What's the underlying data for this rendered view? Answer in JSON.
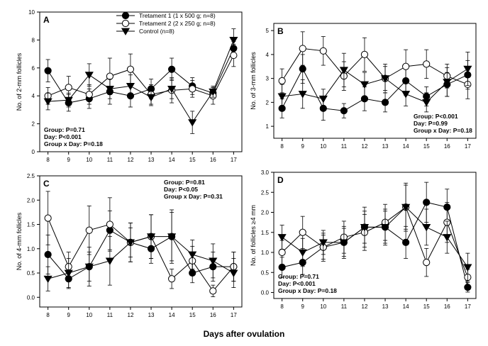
{
  "figure": {
    "shared_xlabel": "Days after ovulation"
  },
  "legend": [
    {
      "name": "Tretament 1 (1 x 500 g; n=8)",
      "marker": "filled-circle"
    },
    {
      "name": "Tretament 2 (2 x 250 g; n=8)",
      "marker": "open-circle"
    },
    {
      "name": "Control (n=8)",
      "marker": "filled-triangle-down"
    }
  ],
  "chart_data": [
    {
      "type": "line",
      "panel_label": "A",
      "ylabel": "No. of 2-mm follicles",
      "x": [
        8,
        9,
        10,
        11,
        12,
        13,
        14,
        15,
        16,
        17
      ],
      "xlim": [
        7.6,
        17.4
      ],
      "ylim": [
        0,
        10
      ],
      "yticks": [
        0,
        2,
        4,
        6,
        8,
        10
      ],
      "ytick_labels": [
        "0",
        "2",
        "4",
        "6",
        "8",
        "10"
      ],
      "series": [
        {
          "name": "Tretament 1 (1 x 500 g; n=8)",
          "marker": "filled-circle",
          "values": [
            5.8,
            3.5,
            3.8,
            4.3,
            4.0,
            4.5,
            5.9,
            4.7,
            4.2,
            7.4
          ],
          "errors": [
            0.8,
            0.6,
            0.7,
            0.9,
            0.8,
            0.7,
            0.8,
            0.6,
            0.4,
            0.5
          ]
        },
        {
          "name": "Tretament 2 (2 x 250 g; n=8)",
          "marker": "open-circle",
          "values": [
            4.0,
            4.6,
            4.1,
            5.4,
            5.9,
            4.1,
            4.4,
            4.5,
            4.0,
            6.9
          ],
          "errors": [
            0.6,
            0.8,
            0.7,
            1.3,
            1.1,
            0.7,
            0.9,
            0.6,
            0.6,
            0.8
          ]
        },
        {
          "name": "Control (n=8)",
          "marker": "filled-triangle-down",
          "values": [
            3.6,
            3.7,
            5.5,
            4.5,
            4.7,
            3.9,
            4.5,
            2.1,
            4.3,
            8.0
          ],
          "errors": [
            0.6,
            0.5,
            0.8,
            0.7,
            0.8,
            0.6,
            0.7,
            0.8,
            0.4,
            0.8
          ]
        }
      ],
      "stats": [
        "Group: P=0.71",
        "Day: P<0.001",
        "Group x Day: P=0.18"
      ],
      "stats_position": "bottom-left"
    },
    {
      "type": "line",
      "panel_label": "B",
      "ylabel": "No. of 3-mm follicles",
      "x": [
        8,
        9,
        10,
        11,
        12,
        13,
        14,
        15,
        16,
        17
      ],
      "xlim": [
        7.6,
        17.4
      ],
      "ylim": [
        0.5,
        5.3
      ],
      "yticks": [
        1,
        2,
        3,
        4,
        5
      ],
      "ytick_labels": [
        "1",
        "2",
        "3",
        "4",
        "5"
      ],
      "series": [
        {
          "name": "Tretament 1 (1 x 500 g; n=8)",
          "marker": "filled-circle",
          "values": [
            1.75,
            3.4,
            1.75,
            1.65,
            2.15,
            2.0,
            2.9,
            2.25,
            2.75,
            3.15
          ],
          "errors": [
            0.4,
            0.6,
            0.5,
            0.3,
            0.5,
            0.4,
            0.6,
            0.4,
            0.5,
            0.6
          ]
        },
        {
          "name": "Tretament 2 (2 x 250 g; n=8)",
          "marker": "open-circle",
          "values": [
            2.9,
            4.25,
            4.15,
            3.1,
            4.0,
            3.0,
            3.5,
            3.6,
            3.1,
            2.75
          ],
          "errors": [
            0.5,
            0.7,
            0.6,
            0.6,
            0.7,
            0.5,
            0.7,
            0.6,
            0.5,
            0.6
          ]
        },
        {
          "name": "Control (n=8)",
          "marker": "filled-triangle-down",
          "values": [
            2.25,
            2.35,
            2.15,
            3.35,
            2.75,
            3.0,
            2.35,
            2.0,
            2.85,
            3.4
          ],
          "errors": [
            0.5,
            0.6,
            0.4,
            0.7,
            0.5,
            0.6,
            0.5,
            0.4,
            0.6,
            0.7
          ]
        }
      ],
      "stats": [
        "Group: P<0.001",
        "Day: P=0.99",
        "Group x Day: P=0.18"
      ],
      "stats_position": "bottom-right"
    },
    {
      "type": "line",
      "panel_label": "C",
      "ylabel": "No. of 4-mm follicles",
      "x": [
        8,
        9,
        10,
        11,
        12,
        13,
        14,
        15,
        16,
        17
      ],
      "xlim": [
        7.6,
        17.4
      ],
      "ylim": [
        -0.2,
        2.5
      ],
      "yticks": [
        0,
        0.5,
        1.0,
        1.5,
        2.0,
        2.5
      ],
      "ytick_labels": [
        "0.0",
        "0.5",
        "1.0",
        "1.5",
        "2.0",
        "2.5"
      ],
      "series": [
        {
          "name": "Tretament 1 (1 x 500 g; n=8)",
          "marker": "filled-circle",
          "values": [
            0.88,
            0.38,
            0.63,
            1.38,
            1.13,
            1.0,
            1.25,
            0.5,
            0.63,
            0.63
          ],
          "errors": [
            0.4,
            0.2,
            0.3,
            0.4,
            0.3,
            0.3,
            0.5,
            0.2,
            0.3,
            0.3
          ]
        },
        {
          "name": "Tretament 2 (2 x 250 g; n=8)",
          "marker": "open-circle",
          "values": [
            1.63,
            0.63,
            1.38,
            1.5,
            1.13,
            1.25,
            0.38,
            0.75,
            0.13,
            0.63
          ],
          "errors": [
            0.55,
            0.3,
            0.5,
            0.55,
            0.4,
            0.45,
            0.2,
            0.3,
            0.12,
            0.3
          ]
        },
        {
          "name": "Control (n=8)",
          "marker": "filled-triangle-down",
          "values": [
            0.38,
            0.5,
            0.63,
            0.75,
            1.13,
            1.25,
            1.25,
            0.88,
            0.75,
            0.5
          ],
          "errors": [
            0.25,
            0.3,
            0.4,
            0.5,
            0.4,
            0.45,
            0.55,
            0.3,
            0.35,
            0.3
          ]
        }
      ],
      "stats": [
        "Group: P=0.81",
        "Day: P<0.05",
        "Group x Day: P=0.31"
      ],
      "stats_position": "top-right"
    },
    {
      "type": "line",
      "panel_label": "D",
      "ylabel": "No. of follicles ≥4 mm",
      "x": [
        8,
        9,
        10,
        11,
        12,
        13,
        14,
        15,
        16,
        17
      ],
      "xlim": [
        7.6,
        17.4
      ],
      "ylim": [
        -0.15,
        3.0
      ],
      "yticks": [
        0,
        0.5,
        1.0,
        1.5,
        2.0,
        2.5,
        3.0
      ],
      "ytick_labels": [
        "0.0",
        "0.5",
        "1.0",
        "1.5",
        "2.0",
        "2.5",
        "3.0"
      ],
      "series": [
        {
          "name": "Tretament 1 (1 x 500 g; n=8)",
          "marker": "filled-circle",
          "values": [
            0.63,
            0.75,
            1.13,
            1.25,
            1.63,
            1.63,
            1.25,
            2.25,
            2.13,
            0.13
          ],
          "errors": [
            0.25,
            0.3,
            0.3,
            0.35,
            0.4,
            0.4,
            0.4,
            0.5,
            0.45,
            0.12
          ]
        },
        {
          "name": "Tretament 2 (2 x 250 g; n=8)",
          "marker": "open-circle",
          "values": [
            1.0,
            1.5,
            1.13,
            1.38,
            1.5,
            1.75,
            2.13,
            0.75,
            1.75,
            0.38
          ],
          "errors": [
            0.3,
            0.4,
            0.35,
            0.4,
            0.45,
            0.45,
            0.6,
            0.35,
            0.5,
            0.2
          ]
        },
        {
          "name": "Control (n=8)",
          "marker": "filled-triangle-down",
          "values": [
            1.38,
            1.0,
            1.25,
            1.25,
            1.63,
            1.63,
            2.13,
            1.63,
            1.38,
            0.63
          ],
          "errors": [
            0.3,
            0.35,
            0.3,
            0.4,
            0.5,
            0.45,
            0.55,
            0.45,
            0.4,
            0.35
          ]
        }
      ],
      "stats": [
        "Group: P=0.71",
        "Day: P<0.001",
        "Group x Day: P=0.18"
      ],
      "stats_position": "bottom-left"
    }
  ]
}
